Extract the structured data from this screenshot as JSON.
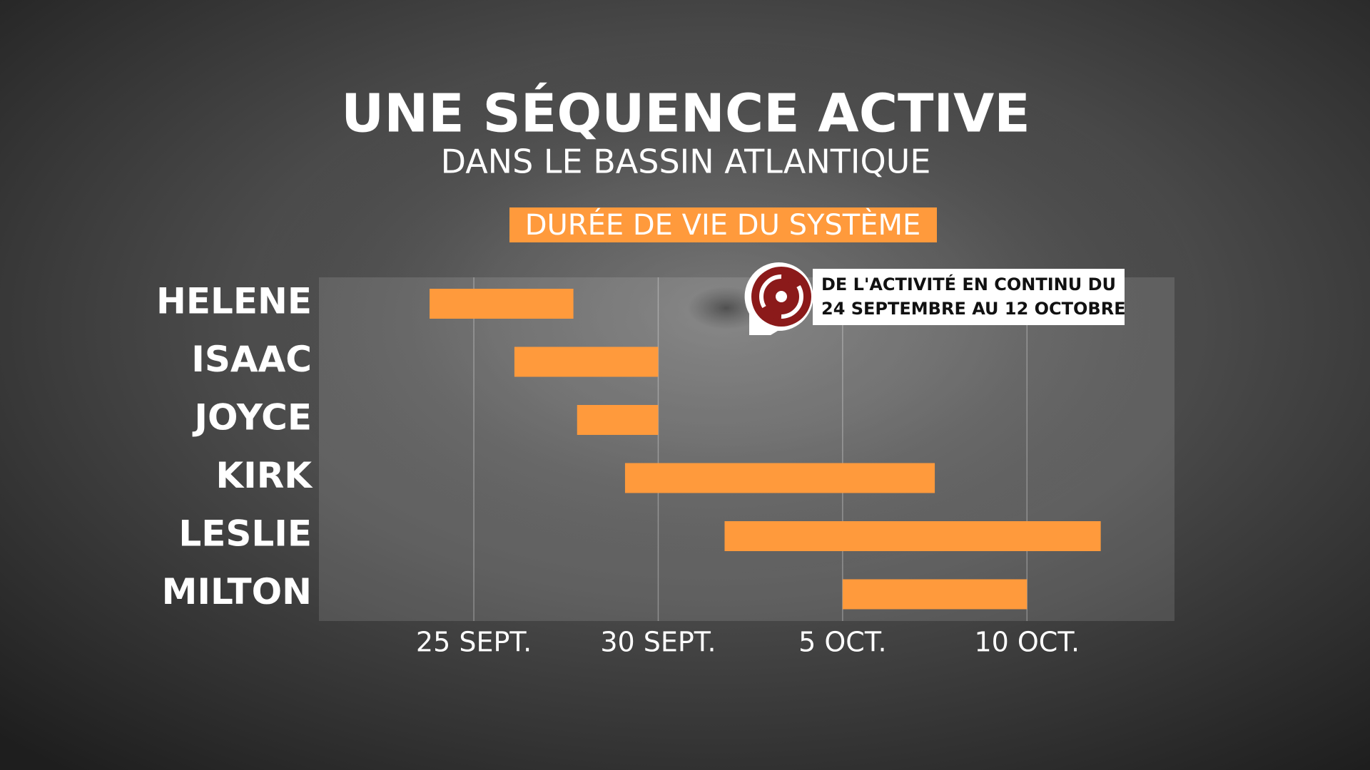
{
  "chart_data": {
    "type": "range-bar",
    "title": "UNE SÉQUENCE ACTIVE",
    "subtitle": "DANS LE BASSIN ATLANTIQUE",
    "label": "DURÉE DE VIE DU SYSTÈME",
    "annotation": [
      "DE L'ACTIVITÉ EN CONTINU DU",
      "24 SEPTEMBRE AU 12 OCTOBRE"
    ],
    "categories": [
      "HELENE",
      "ISAAC",
      "JOYCE",
      "KIRK",
      "LESLIE",
      "MILTON"
    ],
    "starts": [
      23.8,
      26.1,
      27.8,
      29.1,
      31.8,
      35.0
    ],
    "ends": [
      27.7,
      30.0,
      30.0,
      37.5,
      42.0,
      40.0
    ],
    "color": "#ff9a3c",
    "xlim": [
      20.8,
      44.0
    ],
    "xticks": [
      {
        "value": 25,
        "label": "25 SEPT."
      },
      {
        "value": 30,
        "label": "30 SEPT."
      },
      {
        "value": 35,
        "label": "5 OCT."
      },
      {
        "value": 40,
        "label": "10 OCT."
      }
    ],
    "grid": true
  }
}
